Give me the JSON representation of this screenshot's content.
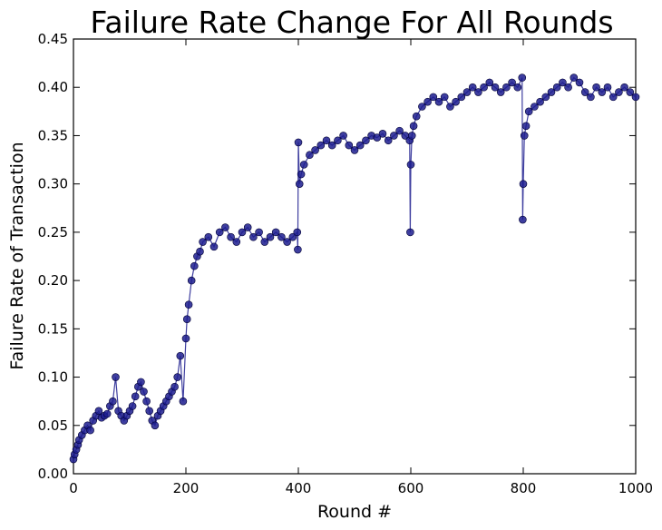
{
  "chart_data": {
    "type": "scatter",
    "title": "Failure Rate Change For All Rounds",
    "xlabel": "Round #",
    "ylabel": "Failure Rate of Transaction",
    "xlim": [
      0,
      1000
    ],
    "ylim": [
      0,
      0.45
    ],
    "xticks": [
      0,
      200,
      400,
      600,
      800,
      1000
    ],
    "yticks": [
      0.0,
      0.05,
      0.1,
      0.15,
      0.2,
      0.25,
      0.3,
      0.35,
      0.4,
      0.45
    ],
    "xtick_labels": [
      "0",
      "200",
      "400",
      "600",
      "800",
      "1000"
    ],
    "ytick_labels": [
      "0.00",
      "0.05",
      "0.10",
      "0.15",
      "0.20",
      "0.25",
      "0.30",
      "0.35",
      "0.40",
      "0.45"
    ],
    "grid": false,
    "legend": "none",
    "series": [
      {
        "color": "#1c1c8e",
        "marker": "circle",
        "connected": true,
        "x": [
          0,
          2,
          5,
          8,
          10,
          15,
          20,
          25,
          30,
          35,
          40,
          45,
          50,
          55,
          60,
          65,
          70,
          75,
          80,
          85,
          90,
          95,
          100,
          105,
          110,
          115,
          120,
          125,
          130,
          135,
          140,
          145,
          150,
          155,
          160,
          165,
          170,
          175,
          180,
          185,
          190,
          195,
          200,
          202,
          205,
          210,
          215,
          220,
          225,
          230,
          240,
          250,
          260,
          270,
          280,
          290,
          300,
          310,
          320,
          330,
          340,
          350,
          360,
          370,
          380,
          390,
          398,
          399,
          400,
          402,
          405,
          410,
          420,
          430,
          440,
          450,
          460,
          470,
          480,
          490,
          500,
          510,
          520,
          530,
          540,
          550,
          560,
          570,
          580,
          590,
          598,
          599,
          600,
          602,
          605,
          610,
          620,
          630,
          640,
          650,
          660,
          670,
          680,
          690,
          700,
          710,
          720,
          730,
          740,
          750,
          760,
          770,
          780,
          790,
          798,
          799,
          800,
          802,
          805,
          810,
          820,
          830,
          840,
          850,
          860,
          870,
          880,
          890,
          900,
          910,
          920,
          930,
          940,
          950,
          960,
          970,
          980,
          990,
          1000
        ],
        "y": [
          0.015,
          0.02,
          0.025,
          0.03,
          0.035,
          0.04,
          0.045,
          0.05,
          0.045,
          0.055,
          0.06,
          0.065,
          0.058,
          0.06,
          0.062,
          0.07,
          0.075,
          0.1,
          0.065,
          0.06,
          0.055,
          0.06,
          0.065,
          0.07,
          0.08,
          0.09,
          0.095,
          0.085,
          0.075,
          0.065,
          0.055,
          0.05,
          0.06,
          0.065,
          0.07,
          0.075,
          0.08,
          0.085,
          0.09,
          0.1,
          0.122,
          0.075,
          0.14,
          0.16,
          0.175,
          0.2,
          0.215,
          0.225,
          0.23,
          0.24,
          0.245,
          0.235,
          0.25,
          0.255,
          0.245,
          0.24,
          0.25,
          0.255,
          0.245,
          0.25,
          0.24,
          0.245,
          0.25,
          0.245,
          0.24,
          0.245,
          0.25,
          0.232,
          0.343,
          0.3,
          0.31,
          0.32,
          0.33,
          0.335,
          0.34,
          0.345,
          0.34,
          0.345,
          0.35,
          0.34,
          0.335,
          0.34,
          0.345,
          0.35,
          0.348,
          0.352,
          0.345,
          0.35,
          0.355,
          0.35,
          0.345,
          0.25,
          0.32,
          0.35,
          0.36,
          0.37,
          0.38,
          0.385,
          0.39,
          0.385,
          0.39,
          0.38,
          0.385,
          0.39,
          0.395,
          0.4,
          0.395,
          0.4,
          0.405,
          0.4,
          0.395,
          0.4,
          0.405,
          0.4,
          0.41,
          0.263,
          0.3,
          0.35,
          0.36,
          0.375,
          0.38,
          0.385,
          0.39,
          0.395,
          0.4,
          0.405,
          0.4,
          0.41,
          0.405,
          0.395,
          0.39,
          0.4,
          0.395,
          0.4,
          0.39,
          0.395,
          0.4,
          0.395,
          0.39
        ]
      }
    ]
  }
}
